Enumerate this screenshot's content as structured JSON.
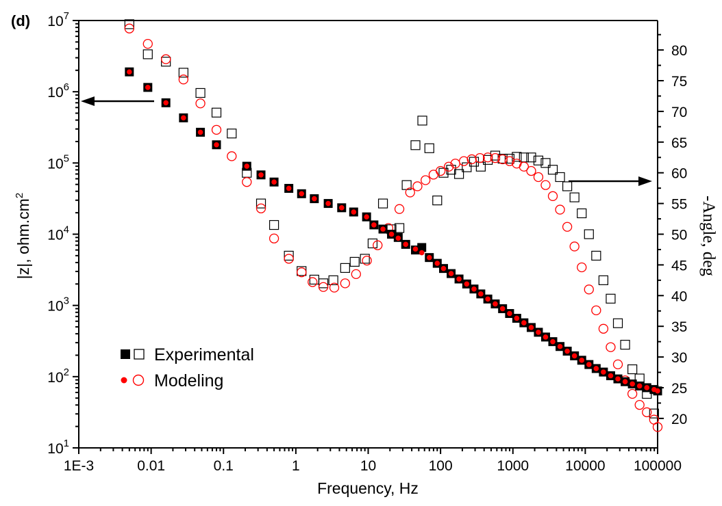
{
  "chart_data": {
    "type": "scatter",
    "panel_label": "(d)",
    "xlabel": "Frequency, Hz",
    "ylabel_left": "|z|, ohm.cm",
    "ylabel_left_sup": "2",
    "ylabel_right": "-Angle, deg",
    "x_scale": "log",
    "xlim": [
      0.001,
      100000
    ],
    "x_ticks": [
      "1E-3",
      "0.01",
      "0.1",
      "1",
      "10",
      "100",
      "1000",
      "10000",
      "100000"
    ],
    "y_left_scale": "log",
    "y_left_lim": [
      10,
      10000000
    ],
    "y_left_ticks": [
      {
        "base": "10",
        "exp": "1"
      },
      {
        "base": "10",
        "exp": "2"
      },
      {
        "base": "10",
        "exp": "3"
      },
      {
        "base": "10",
        "exp": "4"
      },
      {
        "base": "10",
        "exp": "5"
      },
      {
        "base": "10",
        "exp": "6"
      },
      {
        "base": "10",
        "exp": "7"
      }
    ],
    "y_right_lim": [
      15.2,
      84.8
    ],
    "y_right_ticks": [
      "20",
      "25",
      "30",
      "35",
      "40",
      "45",
      "50",
      "55",
      "60",
      "65",
      "70",
      "75",
      "80"
    ],
    "legend": {
      "placement": "lower-left",
      "entries": [
        {
          "label": "Experimental",
          "color": "#000000",
          "filled_marker": "square",
          "open_marker": "square"
        },
        {
          "label": "Modeling",
          "color": "#ff0000",
          "filled_marker": "circle",
          "open_marker": "circle"
        }
      ]
    },
    "annotations": [
      {
        "type": "arrow",
        "direction": "left",
        "meaning": "|z| series read on left axis"
      },
      {
        "type": "arrow",
        "direction": "right",
        "meaning": "-Angle series read on right axis"
      }
    ],
    "series": [
      {
        "name": "Experimental",
        "quantity": "|z|",
        "axis": "left",
        "marker": "filled-square",
        "color": "#000000",
        "x": [
          0.005,
          0.009,
          0.016,
          0.028,
          0.048,
          0.08,
          0.21,
          0.33,
          0.5,
          0.8,
          1.2,
          1.8,
          2.8,
          4.3,
          6.3,
          9.5,
          12,
          16,
          21,
          26,
          33,
          45,
          55,
          70,
          90,
          110,
          140,
          180,
          230,
          290,
          360,
          450,
          570,
          720,
          900,
          1130,
          1420,
          1790,
          2250,
          2830,
          3560,
          4480,
          5640,
          7100,
          8940,
          11250,
          14160,
          17830,
          22440,
          28250,
          35570,
          44780,
          56370,
          70970,
          89340,
          100000
        ],
        "y": [
          1900000,
          1150000,
          700000,
          430000,
          270000,
          180000,
          90000,
          68000,
          54000,
          44000,
          37000,
          31500,
          27000,
          23500,
          20500,
          17500,
          13500,
          11800,
          10000,
          9000,
          7200,
          6000,
          6500,
          4700,
          3900,
          3300,
          2800,
          2350,
          2000,
          1700,
          1450,
          1230,
          1050,
          900,
          770,
          660,
          570,
          490,
          420,
          360,
          310,
          265,
          228,
          196,
          170,
          148,
          130,
          116,
          103,
          93,
          85,
          79,
          74,
          70,
          66,
          63
        ]
      },
      {
        "name": "Modeling",
        "quantity": "|z|",
        "axis": "left",
        "marker": "filled-circle",
        "color": "#ff0000",
        "x": [
          0.005,
          0.009,
          0.016,
          0.028,
          0.048,
          0.08,
          0.21,
          0.33,
          0.5,
          0.8,
          1.2,
          1.8,
          2.8,
          4.3,
          6.3,
          9.5,
          12,
          16,
          21,
          26,
          33,
          45,
          55,
          70,
          90,
          110,
          140,
          180,
          230,
          290,
          360,
          450,
          570,
          720,
          900,
          1130,
          1420,
          1790,
          2250,
          2830,
          3560,
          4480,
          5640,
          7100,
          8940,
          11250,
          14160,
          17830,
          22440,
          28250,
          35570,
          44780,
          56370,
          70970,
          89340,
          100000
        ],
        "y": [
          1900000,
          1150000,
          700000,
          430000,
          270000,
          180000,
          90000,
          68000,
          54000,
          44000,
          37000,
          31500,
          27000,
          23500,
          20500,
          17500,
          13500,
          11800,
          10000,
          8800,
          7200,
          6200,
          5500,
          4700,
          3900,
          3300,
          2800,
          2350,
          2000,
          1700,
          1450,
          1230,
          1050,
          900,
          770,
          660,
          570,
          490,
          420,
          360,
          310,
          265,
          228,
          196,
          170,
          148,
          130,
          116,
          103,
          93,
          85,
          79,
          74,
          70,
          66,
          63
        ]
      },
      {
        "name": "Experimental",
        "quantity": "-Angle",
        "axis": "right",
        "marker": "open-square",
        "color": "#000000",
        "x": [
          0.005,
          0.009,
          0.016,
          0.028,
          0.048,
          0.08,
          0.13,
          0.21,
          0.33,
          0.5,
          0.8,
          1.2,
          1.8,
          2.4,
          3.3,
          4.8,
          6.5,
          9,
          11.5,
          16,
          21,
          27,
          34,
          45,
          56,
          70,
          90,
          110,
          140,
          180,
          230,
          290,
          360,
          450,
          570,
          720,
          900,
          1130,
          1420,
          1790,
          2250,
          2830,
          3560,
          4480,
          5640,
          7100,
          8940,
          11250,
          14160,
          17830,
          22440,
          28250,
          35570,
          44780,
          56370,
          70970,
          89340
        ],
        "y": [
          84.2,
          79.3,
          78.1,
          76.3,
          73.0,
          69.8,
          66.4,
          60.0,
          55.0,
          51.5,
          46.5,
          44.0,
          42.6,
          42.0,
          42.5,
          44.5,
          45.5,
          46.0,
          48.5,
          55.0,
          50.8,
          51.0,
          58.0,
          64.5,
          68.5,
          64.0,
          55.5,
          60.0,
          60.5,
          59.8,
          60.9,
          61.8,
          61.0,
          62.1,
          62.8,
          62.3,
          62.3,
          62.6,
          62.5,
          62.5,
          62.0,
          61.6,
          60.5,
          59.3,
          57.8,
          56.0,
          53.4,
          50.0,
          46.5,
          42.5,
          39.5,
          35.5,
          32.0,
          28.0,
          26.5,
          24.0,
          20.8
        ]
      },
      {
        "name": "Modeling",
        "quantity": "-Angle",
        "axis": "right",
        "marker": "open-circle",
        "color": "#ff0000",
        "x": [
          0.005,
          0.009,
          0.016,
          0.028,
          0.048,
          0.08,
          0.13,
          0.21,
          0.33,
          0.5,
          0.8,
          1.2,
          1.7,
          2.4,
          3.4,
          4.8,
          6.8,
          9.6,
          13.5,
          19,
          27,
          38,
          48,
          62,
          80,
          100,
          130,
          160,
          210,
          270,
          350,
          450,
          570,
          720,
          900,
          1130,
          1420,
          1790,
          2250,
          2830,
          3560,
          4480,
          5640,
          7100,
          8940,
          11250,
          14160,
          17830,
          22440,
          28250,
          35570,
          44780,
          56370,
          70970,
          89340,
          100000
        ],
        "y": [
          83.5,
          81.0,
          78.5,
          75.2,
          71.3,
          67.0,
          62.7,
          58.5,
          54.2,
          49.3,
          46.0,
          43.8,
          42.2,
          41.4,
          41.3,
          42.0,
          43.5,
          45.7,
          48.2,
          51.0,
          54.1,
          56.8,
          57.8,
          58.8,
          59.7,
          60.3,
          61.0,
          61.5,
          61.9,
          62.2,
          62.4,
          62.5,
          62.4,
          62.2,
          61.9,
          61.5,
          61.0,
          60.3,
          59.3,
          58.0,
          56.2,
          54.0,
          51.2,
          48.0,
          44.6,
          41.0,
          37.6,
          34.6,
          31.6,
          28.8,
          26.2,
          24.0,
          22.2,
          21.0,
          19.8,
          18.6
        ]
      }
    ]
  }
}
